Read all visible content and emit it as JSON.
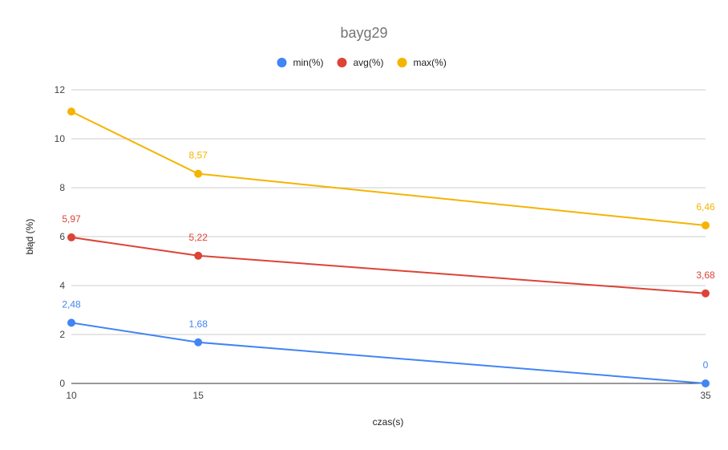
{
  "chart_data": {
    "type": "line",
    "title": "bayg29",
    "xlabel": "czas(s)",
    "ylabel": "błąd (%)",
    "categories": [
      "10",
      "15",
      "35"
    ],
    "ylim": [
      0,
      12
    ],
    "yticks": [
      "0",
      "2",
      "4",
      "6",
      "8",
      "10",
      "12"
    ],
    "grid": true,
    "legend_position": "top",
    "series": [
      {
        "name": "min(%)",
        "color": "#4285F4",
        "values": [
          2.48,
          1.68,
          0
        ],
        "labels": [
          "2,48",
          "1,68",
          "0"
        ]
      },
      {
        "name": "avg(%)",
        "color": "#DB4437",
        "values": [
          5.97,
          5.22,
          3.68
        ],
        "labels": [
          "5,97",
          "5,22",
          "3,68"
        ]
      },
      {
        "name": "max(%)",
        "color": "#F4B400",
        "values": [
          11.11,
          8.57,
          6.46
        ],
        "labels": [
          "",
          "8,57",
          "6,46"
        ]
      }
    ]
  }
}
